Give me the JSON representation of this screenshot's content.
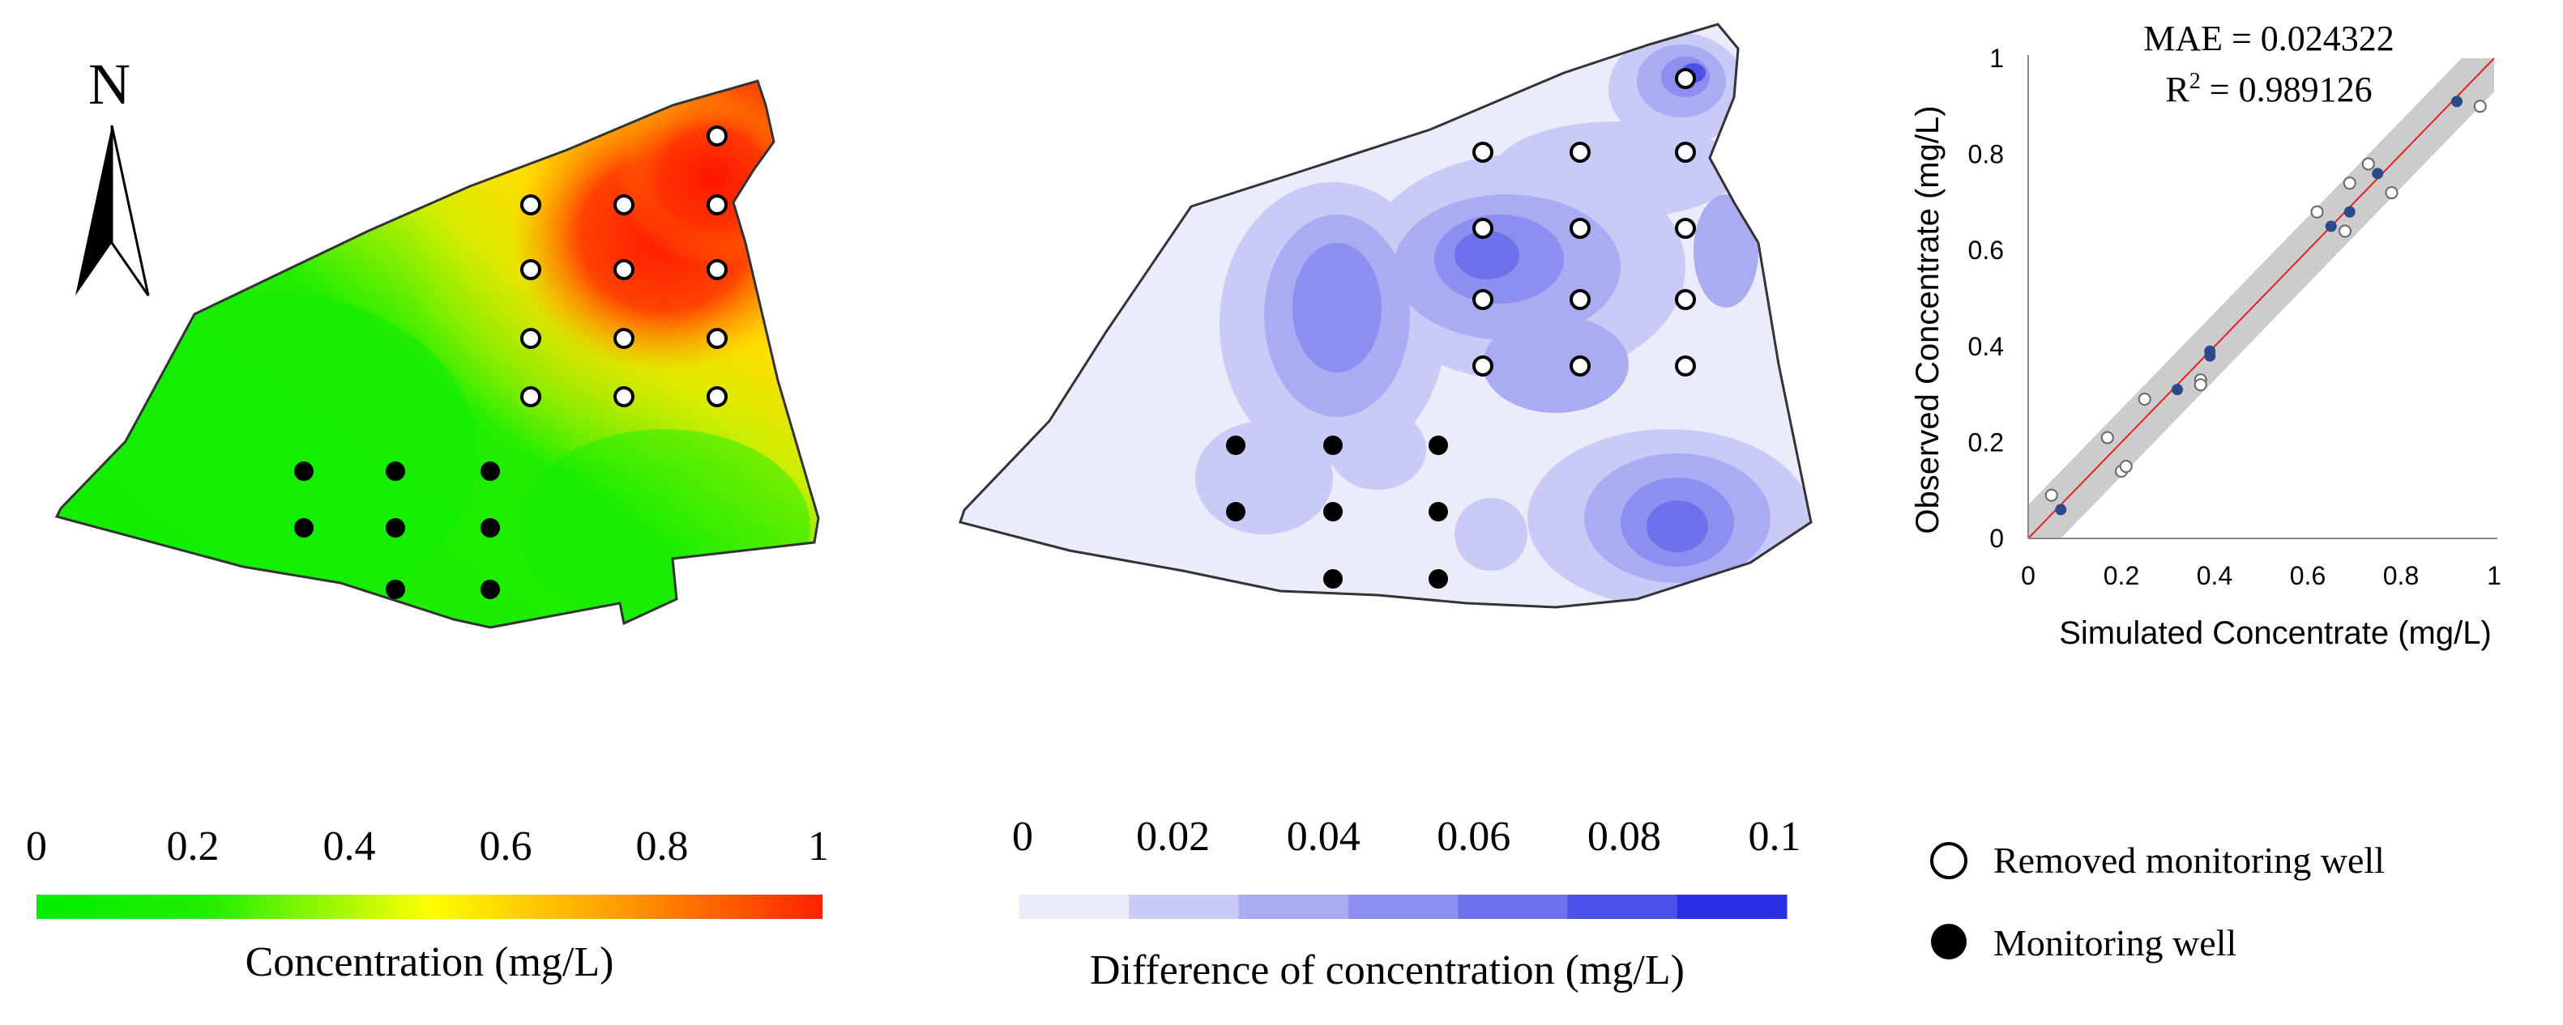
{
  "north_arrow": {
    "label": "N"
  },
  "concentration_map": {
    "colorbar": {
      "ticks": [
        "0",
        "0.2",
        "0.4",
        "0.6",
        "0.8",
        "1"
      ],
      "label": "Concentration (mg/L)",
      "colors": [
        "#00ee00",
        "#22ee00",
        "#ffff00",
        "#ff9900",
        "#ff2200"
      ]
    }
  },
  "difference_map": {
    "colorbar": {
      "ticks": [
        "0",
        "0.02",
        "0.04",
        "0.06",
        "0.08",
        "0.1"
      ],
      "label": "Difference of concentration (mg/L)",
      "colors": [
        "#ebecfb",
        "#c9caf6",
        "#aaacf3",
        "#8d8ff0",
        "#6e71ec",
        "#4d50ea",
        "#2a2ee6"
      ]
    }
  },
  "legend": {
    "removed": "Removed monitoring well",
    "monitoring": "Monitoring well"
  },
  "chart_data": {
    "type": "scatter",
    "title_lines": [
      "MAE = 0.024322",
      "R2 = 0.989126"
    ],
    "mae": "MAE = 0.024322",
    "r2_prefix": "R",
    "r2_sup": "2",
    "r2_value": " = 0.989126",
    "xlabel": "Simulated Concentrate (mg/L)",
    "ylabel": "Observed Concentrate (mg/L)",
    "xlim": [
      0,
      1
    ],
    "ylim": [
      0,
      1
    ],
    "xticks": [
      0,
      0.2,
      0.4,
      0.6,
      0.8,
      1
    ],
    "yticks": [
      0,
      0.2,
      0.4,
      0.6,
      0.8,
      1
    ],
    "xtick_labels": [
      "0",
      "0.2",
      "0.4",
      "0.6",
      "0.8",
      "1"
    ],
    "ytick_labels": [
      "0",
      "0.2",
      "0.4",
      "0.6",
      "0.8",
      "1"
    ],
    "fit_line": {
      "x": [
        0,
        1
      ],
      "y": [
        0,
        1
      ],
      "color": "#e82020"
    },
    "band_color": "#cccccc",
    "series": [
      {
        "name": "Removed monitoring well",
        "style": "open",
        "x": [
          0.05,
          0.17,
          0.2,
          0.21,
          0.25,
          0.37,
          0.37,
          0.62,
          0.68,
          0.69,
          0.73,
          0.78,
          0.97
        ],
        "y": [
          0.09,
          0.21,
          0.14,
          0.15,
          0.29,
          0.33,
          0.32,
          0.68,
          0.64,
          0.74,
          0.78,
          0.72,
          0.9
        ]
      },
      {
        "name": "Monitoring well",
        "style": "filled",
        "color": "#2b4a8a",
        "x": [
          0.07,
          0.32,
          0.39,
          0.39,
          0.65,
          0.69,
          0.75,
          0.92
        ],
        "y": [
          0.06,
          0.31,
          0.38,
          0.39,
          0.65,
          0.68,
          0.76,
          0.91
        ]
      }
    ]
  }
}
